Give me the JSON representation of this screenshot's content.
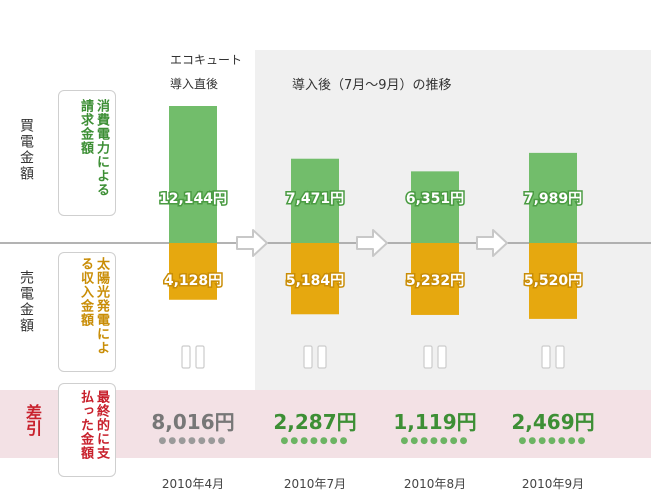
{
  "header": {
    "first_label_line1": "エコキュート",
    "first_label_line2": "導入直後",
    "after_label": "導入後（7月〜9月）の推移"
  },
  "rows": {
    "buy_label": "買電金額",
    "sell_label": "売電金額",
    "diff_label": "差引"
  },
  "bubbles": {
    "buy": "消費電力による請求金額",
    "sell": "太陽光発電による収入金額",
    "diff": "最終的に支払った金額"
  },
  "colors": {
    "buy": "#72bd6b",
    "sell": "#e6a80f",
    "diff_band": "#f3e1e5",
    "after_band": "#f0f0f0",
    "arrow": "#c8c8c8",
    "total_first": "#777777",
    "total_after": "#3d8f35",
    "diff_label": "#c8202c"
  },
  "chart_data": {
    "type": "bar",
    "categories": [
      "2010年4月",
      "2010年7月",
      "2010年8月",
      "2010年9月"
    ],
    "series": [
      {
        "name": "買電金額",
        "values": [
          12144,
          7471,
          6351,
          7989
        ],
        "labels": [
          "12,144円",
          "7,471円",
          "6,351円",
          "7,989円"
        ]
      },
      {
        "name": "売電金額",
        "values": [
          4128,
          5184,
          5232,
          5520
        ],
        "labels": [
          "4,128円",
          "5,184円",
          "5,232円",
          "5,520円"
        ]
      }
    ],
    "totals": {
      "values": [
        8016,
        2287,
        1119,
        2469
      ],
      "labels": [
        "8,016円",
        "2,287円",
        "1,119円",
        "2,469円"
      ]
    },
    "title": "",
    "xlabel": "",
    "ylabel": ""
  }
}
